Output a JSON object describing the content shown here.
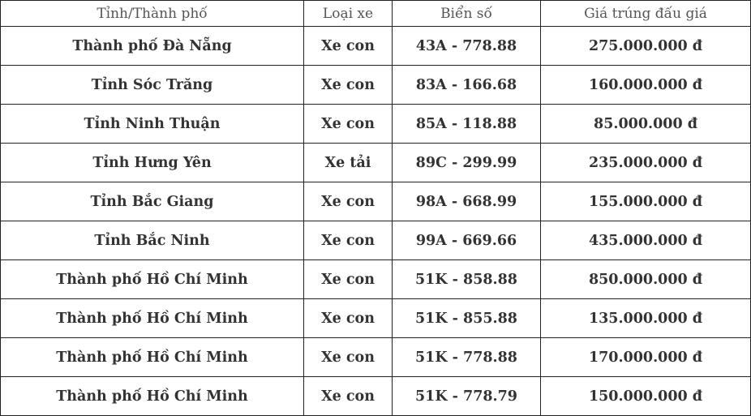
{
  "table": {
    "headers": [
      "Tỉnh/Thành phố",
      "Loại xe",
      "Biển số",
      "Giá trúng đấu giá"
    ],
    "rows": [
      [
        "Thành phố Đà Nẵng",
        "Xe con",
        "43A - 778.88",
        "275.000.000 đ"
      ],
      [
        "Tỉnh Sóc Trăng",
        "Xe con",
        "83A - 166.68",
        "160.000.000 đ"
      ],
      [
        "Tỉnh Ninh Thuận",
        "Xe con",
        "85A - 118.88",
        "85.000.000 đ"
      ],
      [
        "Tỉnh Hưng Yên",
        "Xe tải",
        "89C - 299.99",
        "235.000.000 đ"
      ],
      [
        "Tỉnh Bắc Giang",
        "Xe con",
        "98A - 668.99",
        "155.000.000 đ"
      ],
      [
        "Tỉnh Bắc Ninh",
        "Xe con",
        "99A - 669.66",
        "435.000.000 đ"
      ],
      [
        "Thành phố Hồ Chí Minh",
        "Xe con",
        "51K - 858.88",
        "850.000.000 đ"
      ],
      [
        "Thành phố Hồ Chí Minh",
        "Xe con",
        "51K - 855.88",
        "135.000.000 đ"
      ],
      [
        "Thành phố Hồ Chí Minh",
        "Xe con",
        "51K - 778.88",
        "170.000.000 đ"
      ],
      [
        "Thành phố Hồ Chí Minh",
        "Xe con",
        "51K - 778.79",
        "150.000.000 đ"
      ]
    ]
  }
}
